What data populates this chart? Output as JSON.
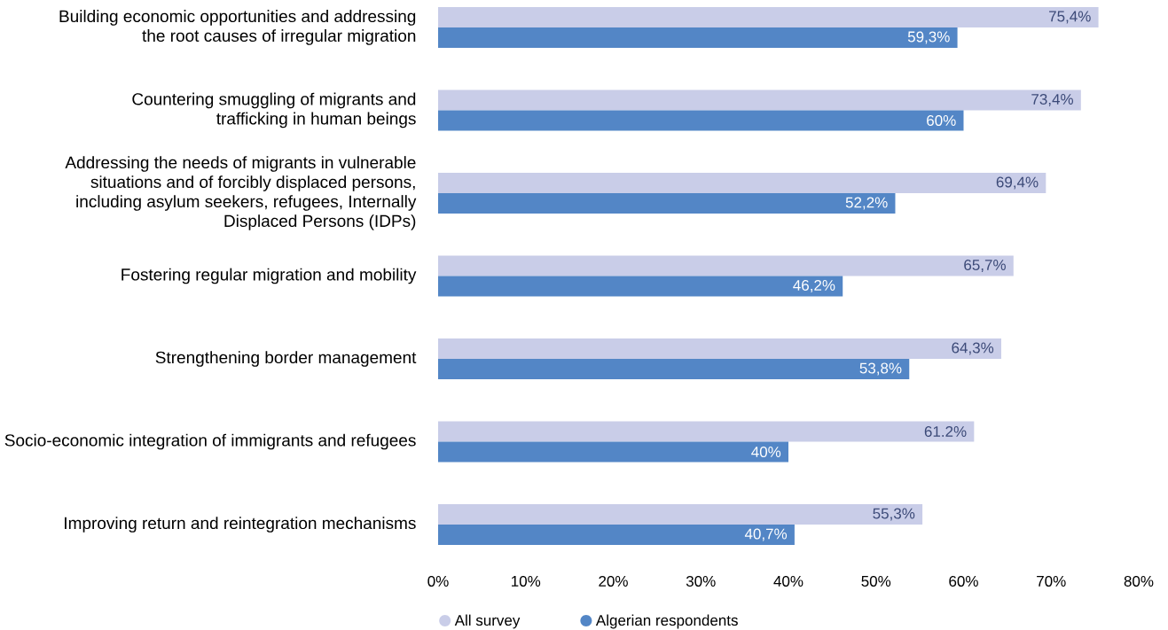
{
  "chart_data": {
    "type": "bar",
    "orientation": "horizontal",
    "categories": [
      "Building economic opportunities and addressing the root causes of irregular migration",
      "Countering smuggling of migrants and trafficking in human beings",
      "Addressing the needs of migrants in vulnerable situations and of forcibly displaced persons, including asylum seekers, refugees, Internally Displaced Persons (IDPs)",
      "Fostering regular migration and mobility",
      "Strengthening border management",
      "Socio-economic integration of immigrants and refugees",
      "Improving return and reintegration mechanisms"
    ],
    "series": [
      {
        "name": "All survey",
        "color": "#c9cde8",
        "values": [
          75.4,
          73.4,
          69.4,
          65.7,
          64.3,
          61.2,
          55.3
        ],
        "value_labels": [
          "75,4%",
          "73,4%",
          "69,4%",
          "65,7%",
          "64,3%",
          "61.2%",
          "55,3%"
        ]
      },
      {
        "name": "Algerian respondents",
        "color": "#5386c6",
        "values": [
          59.3,
          60,
          52.2,
          46.2,
          53.8,
          40,
          40.7
        ],
        "value_labels": [
          "59,3%",
          "60%",
          "52,2%",
          "46,2%",
          "53,8%",
          "40%",
          "40,7%"
        ]
      }
    ],
    "xlim": [
      0,
      80
    ],
    "xticks": [
      {
        "value": 0,
        "label": "0%"
      },
      {
        "value": 10,
        "label": "10%"
      },
      {
        "value": 20,
        "label": "20%"
      },
      {
        "value": 30,
        "label": "30%"
      },
      {
        "value": 40,
        "label": "40%"
      },
      {
        "value": 50,
        "label": "50%"
      },
      {
        "value": 60,
        "label": "60%"
      },
      {
        "value": 70,
        "label": "70%"
      },
      {
        "value": 80,
        "label": "80%"
      }
    ],
    "legend": "bottom"
  }
}
